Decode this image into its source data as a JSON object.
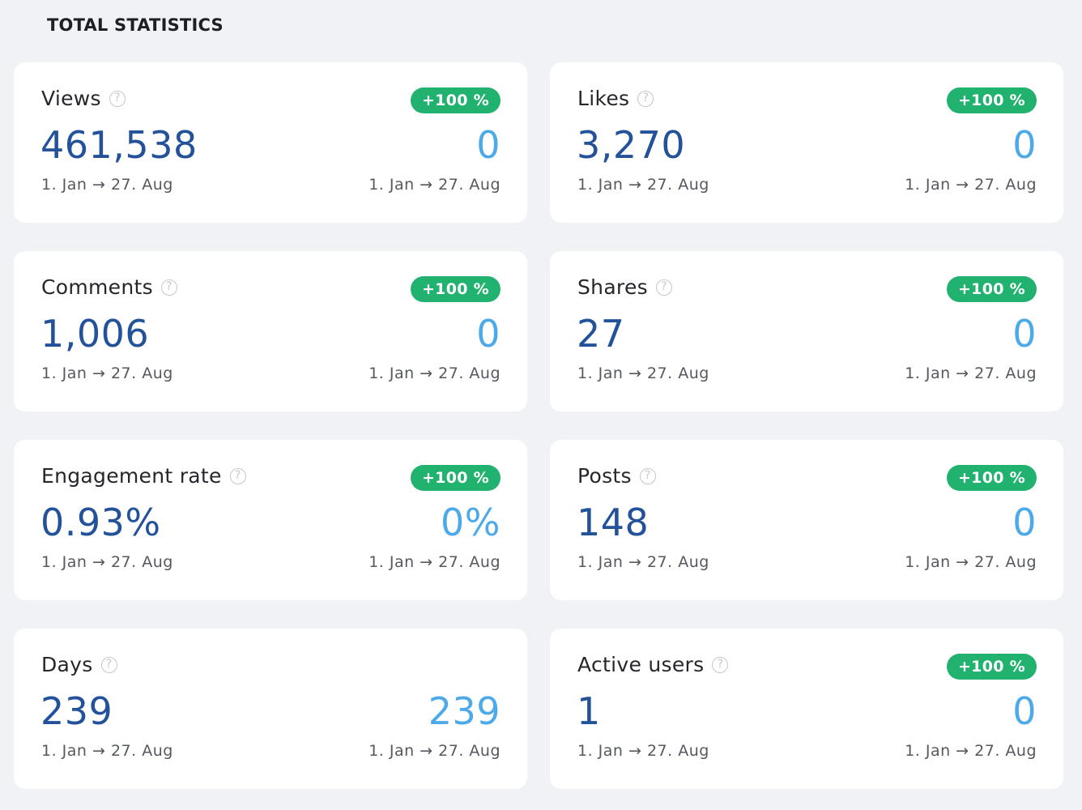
{
  "section": {
    "title": "TOTAL STATISTICS"
  },
  "help_icon_glyph": "?",
  "colors": {
    "background": "#f0f2f6",
    "card": "#ffffff",
    "primary_value": "#23529a",
    "compare_value": "#4daae9",
    "badge_bg": "#21b26f",
    "badge_text": "#ffffff"
  },
  "cards": [
    {
      "title": "Views",
      "badge": "+100 %",
      "value": "461,538",
      "compare_value": "0",
      "date_range": "1. Jan → 27. Aug",
      "compare_date_range": "1. Jan → 27. Aug"
    },
    {
      "title": "Likes",
      "badge": "+100 %",
      "value": "3,270",
      "compare_value": "0",
      "date_range": "1. Jan → 27. Aug",
      "compare_date_range": "1. Jan → 27. Aug"
    },
    {
      "title": "Comments",
      "badge": "+100 %",
      "value": "1,006",
      "compare_value": "0",
      "date_range": "1. Jan → 27. Aug",
      "compare_date_range": "1. Jan → 27. Aug"
    },
    {
      "title": "Shares",
      "badge": "+100 %",
      "value": "27",
      "compare_value": "0",
      "date_range": "1. Jan → 27. Aug",
      "compare_date_range": "1. Jan → 27. Aug"
    },
    {
      "title": "Engagement rate",
      "badge": "+100 %",
      "value": "0.93%",
      "compare_value": "0%",
      "date_range": "1. Jan → 27. Aug",
      "compare_date_range": "1. Jan → 27. Aug"
    },
    {
      "title": "Posts",
      "badge": "+100 %",
      "value": "148",
      "compare_value": "0",
      "date_range": "1. Jan → 27. Aug",
      "compare_date_range": "1. Jan → 27. Aug"
    },
    {
      "title": "Days",
      "badge": "",
      "value": "239",
      "compare_value": "239",
      "date_range": "1. Jan → 27. Aug",
      "compare_date_range": "1. Jan → 27. Aug"
    },
    {
      "title": "Active users",
      "badge": "+100 %",
      "value": "1",
      "compare_value": "0",
      "date_range": "1. Jan → 27. Aug",
      "compare_date_range": "1. Jan → 27. Aug"
    }
  ]
}
